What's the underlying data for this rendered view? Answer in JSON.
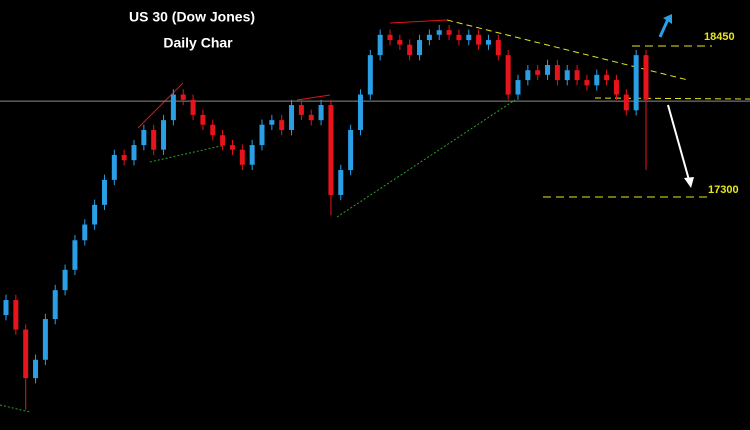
{
  "chart_data": {
    "type": "candlestick",
    "title": "US 30 (Dow Jones)",
    "subtitle": "Daily Char",
    "open": [
      16400,
      16515,
      16290,
      15920,
      16060,
      16370,
      16590,
      16745,
      16970,
      17090,
      17240,
      17430,
      17620,
      17580,
      17695,
      17810,
      17660,
      17885,
      18080,
      18040,
      17925,
      17850,
      17770,
      17695,
      17660,
      17545,
      17695,
      17850,
      17885,
      17810,
      18000,
      17925,
      17885,
      18000,
      17315,
      17505,
      17810,
      18080,
      18380,
      18535,
      18495,
      18460,
      18380,
      18495,
      18535,
      18570,
      18535,
      18495,
      18535,
      18460,
      18495,
      18380,
      18080,
      18190,
      18265,
      18230,
      18305,
      18190,
      18265,
      18190,
      18150,
      18230,
      18190,
      18080,
      17960,
      18380
    ],
    "high": [
      16555,
      16555,
      16330,
      16100,
      16410,
      16630,
      16785,
      17010,
      17130,
      17280,
      17470,
      17660,
      17660,
      17735,
      17850,
      17850,
      17925,
      18120,
      18120,
      18080,
      17965,
      17890,
      17810,
      17735,
      17700,
      17735,
      17890,
      17925,
      17925,
      18040,
      18040,
      17965,
      18040,
      18040,
      17545,
      17850,
      18120,
      18420,
      18575,
      18575,
      18535,
      18500,
      18535,
      18575,
      18610,
      18610,
      18575,
      18575,
      18575,
      18535,
      18535,
      18420,
      18230,
      18305,
      18305,
      18345,
      18345,
      18305,
      18305,
      18230,
      18270,
      18270,
      18230,
      18120,
      18420,
      18420
    ],
    "low": [
      16360,
      16250,
      15680,
      15880,
      16020,
      16330,
      16550,
      16705,
      16930,
      17050,
      17200,
      17390,
      17540,
      17540,
      17655,
      17620,
      17620,
      17845,
      18000,
      17885,
      17810,
      17730,
      17655,
      17620,
      17505,
      17505,
      17655,
      17810,
      17770,
      17770,
      17885,
      17845,
      17845,
      17160,
      17275,
      17465,
      17770,
      18040,
      18340,
      18455,
      18420,
      18340,
      18340,
      18455,
      18495,
      18495,
      18455,
      18455,
      18420,
      18420,
      18340,
      18040,
      18040,
      18150,
      18190,
      18190,
      18150,
      18150,
      18150,
      18110,
      18110,
      18150,
      18040,
      17920,
      17920,
      17505
    ],
    "close": [
      16515,
      16290,
      15920,
      16060,
      16370,
      16590,
      16745,
      16970,
      17090,
      17240,
      17430,
      17620,
      17580,
      17695,
      17810,
      17660,
      17885,
      18080,
      18040,
      17925,
      17850,
      17770,
      17695,
      17660,
      17545,
      17695,
      17850,
      17885,
      17810,
      18000,
      17925,
      17885,
      18000,
      17315,
      17505,
      17810,
      18080,
      18380,
      18535,
      18495,
      18460,
      18380,
      18495,
      18535,
      18570,
      18535,
      18495,
      18535,
      18460,
      18495,
      18380,
      18080,
      18190,
      18265,
      18230,
      18305,
      18190,
      18265,
      18190,
      18150,
      18230,
      18190,
      18080,
      17960,
      18380,
      18040
    ],
    "up_color": "#2a9fe6",
    "down_color": "#e8141c",
    "ylim": [
      15525,
      18800
    ],
    "horizontal_line": 18030,
    "levels": [
      18450,
      17300
    ]
  }
}
